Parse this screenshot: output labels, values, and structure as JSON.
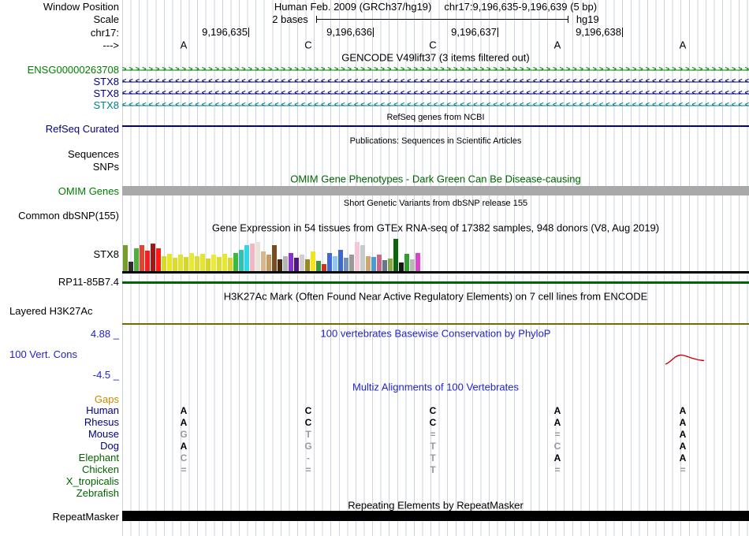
{
  "header": {
    "row_label": "Window Position",
    "assembly_title": "Human Feb. 2009 (GRCh37/hg19)",
    "position": "chr17:9,196,635-9,196,639 (5 bp)",
    "scale_row_label": "Scale",
    "scale_text": "2 bases",
    "assembly_short": "hg19",
    "chrom_label": "chr17:",
    "tick_labels": [
      "9,196,635",
      "9,196,636",
      "9,196,637",
      "9,196,638"
    ],
    "strand_label": "--->",
    "bases": [
      "A",
      "C",
      "C",
      "A",
      "A"
    ]
  },
  "gencode": {
    "title": "GENCODE V49lift37 (3 items filtered out)",
    "genes": [
      {
        "label": "ENSG00000263708",
        "color": "#008000",
        "dir": "right"
      },
      {
        "label": "STX8",
        "color": "#000080",
        "dir": "left"
      },
      {
        "label": "STX8",
        "color": "#000080",
        "dir": "left"
      },
      {
        "label": "STX8",
        "color": "#008080",
        "dir": "left"
      }
    ]
  },
  "refseq": {
    "title": "RefSeq genes from NCBI",
    "label": "RefSeq Curated",
    "label_color": "#00008B",
    "item_color": "#00008B"
  },
  "publications": {
    "title": "Publications: Sequences in Scientific Articles",
    "sequences_label": "Sequences",
    "snps_label": "SNPs"
  },
  "omim": {
    "title": "OMIM Gene Phenotypes - Dark Green Can Be Disease-causing",
    "title_color": "#006400",
    "label": "OMIM Genes",
    "label_color": "#008000",
    "bar_color": "#A9A9A9"
  },
  "dbsnp": {
    "title": "Short Genetic Variants from dbSNP release 155",
    "label": "Common dbSNP(155)"
  },
  "gtex": {
    "title": "Gene Expression in 54 tissues from GTEx RNA-seq of 17382 samples, 948 donors (V8, Aug 2019)",
    "label": "STX8",
    "bars": [
      [
        "#759e29",
        33
      ],
      [
        "#2d2d2d",
        12
      ],
      [
        "#4fae3f",
        29
      ],
      [
        "#e0452e",
        33
      ],
      [
        "#ee2222",
        26
      ],
      [
        "#a01818",
        35
      ],
      [
        "#ff1a1a",
        29
      ],
      [
        "#d9d926",
        19
      ],
      [
        "#e6e62e",
        22
      ],
      [
        "#dcdc2a",
        17
      ],
      [
        "#e2e234",
        21
      ],
      [
        "#d7d724",
        18
      ],
      [
        "#e8e83a",
        23
      ],
      [
        "#dddd2e",
        19
      ],
      [
        "#e3e338",
        22
      ],
      [
        "#d5d522",
        16
      ],
      [
        "#eaea40",
        21
      ],
      [
        "#dedc30",
        18
      ],
      [
        "#e5e53a",
        22
      ],
      [
        "#d8d828",
        17
      ],
      [
        "#3cb83c",
        23
      ],
      [
        "#2ec2b4",
        27
      ],
      [
        "#30d5e8",
        33
      ],
      [
        "#f2b6c6",
        35
      ],
      [
        "#e9e2d6",
        37
      ],
      [
        "#d6b68a",
        25
      ],
      [
        "#c69a62",
        21
      ],
      [
        "#7c4a1e",
        33
      ],
      [
        "#46280e",
        15
      ],
      [
        "#b4b4b4",
        19
      ],
      [
        "#8833cc",
        23
      ],
      [
        "#551188",
        17
      ],
      [
        "#cfcfcf",
        21
      ],
      [
        "#9a8a1e",
        15
      ],
      [
        "#f2e41e",
        25
      ],
      [
        "#3a9a3a",
        13
      ],
      [
        "#cc3322",
        9
      ],
      [
        "#3f69d9",
        23
      ],
      [
        "#8fc6f2",
        19
      ],
      [
        "#3a6ad0",
        27
      ],
      [
        "#7090b8",
        17
      ],
      [
        "#9a9a9a",
        21
      ],
      [
        "#f6c6d6",
        37
      ],
      [
        "#c9c9c9",
        33
      ],
      [
        "#caa870",
        19
      ],
      [
        "#4a9ad4",
        18
      ],
      [
        "#cc6688",
        21
      ],
      [
        "#667788",
        14
      ],
      [
        "#88aa44",
        16
      ],
      [
        "#0a660a",
        41
      ],
      [
        "#161616",
        11
      ],
      [
        "#2e9e2e",
        22
      ],
      [
        "#b8b8b8",
        15
      ],
      [
        "#dd44cc",
        23
      ]
    ]
  },
  "rp11": {
    "label": "RP11-85B7.4",
    "color": "#006400"
  },
  "h3k27ac": {
    "title": "H3K27Ac Mark (Often Found Near Active Regulatory Elements) on 7 cell lines from ENCODE",
    "label": "Layered H3K27Ac",
    "color": "#6E6E00"
  },
  "phylop": {
    "title": "100 vertebrates Basewise Conservation by PhyloP",
    "label": "100 Vert. Cons",
    "max": "4.88 _",
    "min": "-4.5 _",
    "accent": "#2222cc",
    "signal_color": "#c80000"
  },
  "multiz": {
    "title": "Multiz Alignments of 100 Vertebrates",
    "gaps_label": "Gaps",
    "gaps_color": "#CC8800",
    "species": [
      {
        "name": "Human",
        "color": "#000080",
        "cells": [
          {
            "t": "A"
          },
          {
            "t": "C"
          },
          {
            "t": "C"
          },
          {
            "t": "A"
          },
          {
            "t": "A"
          }
        ]
      },
      {
        "name": "Rhesus",
        "color": "#000080",
        "cells": [
          {
            "t": "A"
          },
          {
            "t": "C"
          },
          {
            "t": "C"
          },
          {
            "t": "A"
          },
          {
            "t": "A"
          }
        ]
      },
      {
        "name": "Mouse",
        "color": "#000080",
        "cells": [
          {
            "t": "G",
            "dim": true
          },
          {
            "t": "T",
            "dim": true
          },
          {
            "t": "=",
            "dim": true
          },
          {
            "t": "=",
            "dim": true
          },
          {
            "t": "A"
          }
        ]
      },
      {
        "name": "Dog",
        "color": "#000080",
        "cells": [
          {
            "t": "A"
          },
          {
            "t": "G",
            "dim": true
          },
          {
            "t": "T",
            "dim": true
          },
          {
            "t": "C",
            "dim": true
          },
          {
            "t": "A"
          }
        ]
      },
      {
        "name": "Elephant",
        "color": "#006400",
        "cells": [
          {
            "t": "C",
            "dim": true
          },
          {
            "t": "-",
            "dim": true
          },
          {
            "t": "T",
            "dim": true
          },
          {
            "t": "A"
          },
          {
            "t": "A"
          }
        ]
      },
      {
        "name": "Chicken",
        "color": "#006400",
        "cells": [
          {
            "t": "=",
            "dim": true
          },
          {
            "t": "=",
            "dim": true
          },
          {
            "t": "T",
            "dim": true
          },
          {
            "t": "=",
            "dim": true
          },
          {
            "t": "=",
            "dim": true
          }
        ]
      },
      {
        "name": "X_tropicalis",
        "color": "#006400",
        "cells": [
          {
            "t": ""
          },
          {
            "t": ""
          },
          {
            "t": ""
          },
          {
            "t": ""
          },
          {
            "t": ""
          }
        ]
      },
      {
        "name": "Zebrafish",
        "color": "#006400",
        "cells": [
          {
            "t": ""
          },
          {
            "t": ""
          },
          {
            "t": ""
          },
          {
            "t": ""
          },
          {
            "t": ""
          }
        ]
      }
    ]
  },
  "repeatmasker": {
    "title": "Repeating Elements by RepeatMasker",
    "label": "RepeatMasker",
    "bar_color": "#000000"
  }
}
